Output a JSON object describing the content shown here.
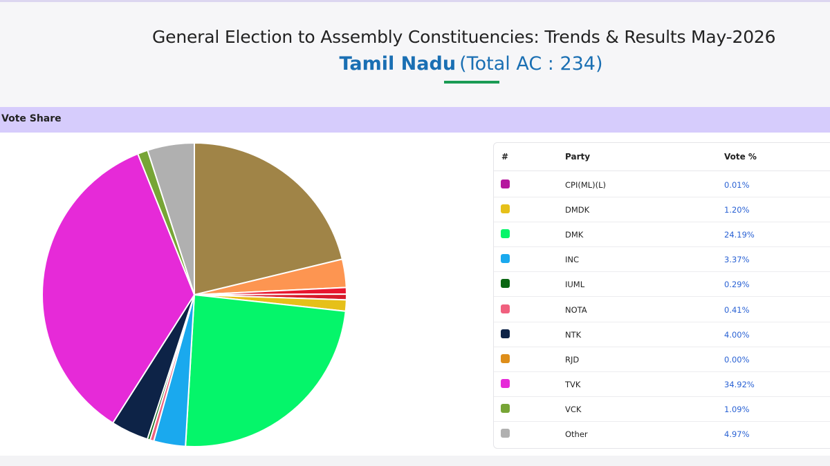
{
  "header": {
    "title": "General Election to Assembly Constituencies: Trends & Results May-2026",
    "state": "Tamil Nadu",
    "total_ac": "(Total AC : 234)"
  },
  "section": {
    "title": "Vote Share"
  },
  "table": {
    "columns": [
      "#",
      "Party",
      "Vote %"
    ],
    "rows": [
      {
        "party": "CPI(ML)(L)",
        "vote": "0.01%",
        "color": "#b5179e"
      },
      {
        "party": "DMDK",
        "vote": "1.20%",
        "color": "#e6c019"
      },
      {
        "party": "DMK",
        "vote": "24.19%",
        "color": "#05f56a"
      },
      {
        "party": "INC",
        "vote": "3.37%",
        "color": "#1aa9ee"
      },
      {
        "party": "IUML",
        "vote": "0.29%",
        "color": "#0a6612"
      },
      {
        "party": "NOTA",
        "vote": "0.41%",
        "color": "#f0607e"
      },
      {
        "party": "NTK",
        "vote": "4.00%",
        "color": "#0d2347"
      },
      {
        "party": "RJD",
        "vote": "0.00%",
        "color": "#de8e1a"
      },
      {
        "party": "TVK",
        "vote": "34.92%",
        "color": "#e62ad8"
      },
      {
        "party": "VCK",
        "vote": "1.09%",
        "color": "#77a536"
      },
      {
        "party": "Other",
        "vote": "4.97%",
        "color": "#b0b0b0"
      }
    ]
  },
  "chart_data": {
    "type": "pie",
    "categories": [
      "",
      "",
      "",
      "",
      "DMDK",
      "DMK",
      "INC",
      "NOTA",
      "IUML",
      "NTK",
      "TVK",
      "VCK",
      "Other"
    ],
    "values": [
      21.22,
      3.0,
      0.7,
      0.6,
      1.2,
      24.19,
      3.37,
      0.41,
      0.29,
      4.0,
      34.92,
      1.09,
      4.97
    ],
    "colors": [
      "#a08447",
      "#fd9551",
      "#e8152e",
      "#d61a2a",
      "#e6c019",
      "#05f56a",
      "#1aa9ee",
      "#f0607e",
      "#0a6612",
      "#0d2347",
      "#e62ad8",
      "#77a536",
      "#b0b0b0"
    ]
  }
}
